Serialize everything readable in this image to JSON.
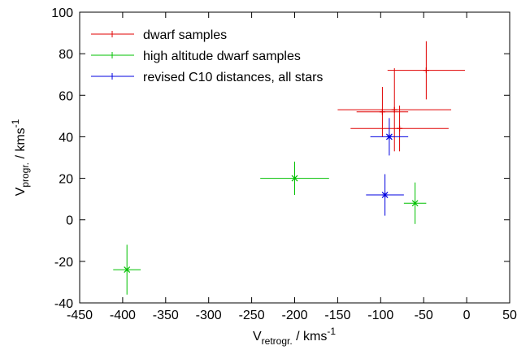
{
  "chart_data": {
    "type": "scatter",
    "xlabel": {
      "main": "V",
      "sub": "retrogr.",
      "rest": " / kms",
      "sup": "-1"
    },
    "ylabel": {
      "main": "V",
      "sub": "progr.",
      "rest": " / kms",
      "sup": "-1"
    },
    "xlim": [
      -450,
      50
    ],
    "xticks": [
      -450,
      -400,
      -350,
      -300,
      -250,
      -200,
      -150,
      -100,
      -50,
      0,
      50
    ],
    "ylim": [
      -40,
      100
    ],
    "yticks": [
      -40,
      -20,
      0,
      20,
      40,
      60,
      80,
      100
    ],
    "legend": "upper left",
    "series": [
      {
        "name": "dwarf samples",
        "color": "#e00000",
        "marker": "+",
        "x": [
          -47,
          -84,
          -98,
          -78
        ],
        "values": [
          72,
          53,
          52,
          44
        ],
        "xerr": [
          45,
          66,
          30,
          57
        ],
        "yerr": [
          14,
          20,
          12,
          11
        ]
      },
      {
        "name": "high altitude dwarf samples",
        "color": "#00c000",
        "marker": "x",
        "x": [
          -200,
          -60,
          -395
        ],
        "values": [
          20,
          8,
          -24
        ],
        "xerr": [
          40,
          13,
          16
        ],
        "yerr": [
          8,
          10,
          12
        ]
      },
      {
        "name": "revised C10 distances, all stars",
        "color": "#0000e0",
        "marker": "*",
        "x": [
          -90,
          -95
        ],
        "values": [
          40,
          12
        ],
        "xerr": [
          22,
          22
        ],
        "yerr": [
          9,
          10
        ]
      }
    ]
  }
}
